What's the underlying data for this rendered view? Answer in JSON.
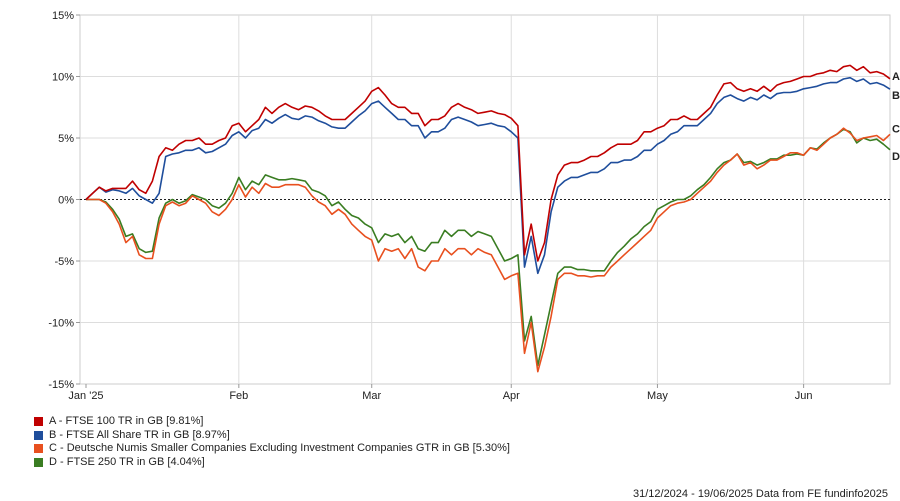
{
  "chart_data": {
    "type": "line",
    "yticks": [
      "15%",
      "10%",
      "5%",
      "0%",
      "-5%",
      "-10%",
      "-15%"
    ],
    "ylim": [
      -15,
      15
    ],
    "xlim": [
      0,
      121
    ],
    "xticks": [
      {
        "label": "Jan '25",
        "x": 0
      },
      {
        "label": "Feb",
        "x": 23
      },
      {
        "label": "Mar",
        "x": 43
      },
      {
        "label": "Apr",
        "x": 64
      },
      {
        "label": "May",
        "x": 86
      },
      {
        "label": "Jun",
        "x": 108
      }
    ],
    "grid": true,
    "legend_position": "bottom-left",
    "series": [
      {
        "letter": "A",
        "name": "A - FTSE 100 TR in GB [9.81%]",
        "color": "#c00000",
        "values": [
          0,
          0.5,
          1.0,
          0.7,
          0.9,
          0.9,
          0.9,
          1.5,
          0.8,
          0.5,
          1.5,
          3.5,
          4.2,
          4.0,
          4.5,
          4.8,
          4.8,
          5.0,
          4.5,
          4.5,
          4.8,
          5.0,
          6.0,
          6.2,
          5.5,
          6.0,
          6.5,
          7.5,
          7.0,
          7.5,
          7.8,
          7.5,
          7.3,
          7.6,
          7.5,
          7.2,
          6.8,
          6.5,
          6.5,
          6.5,
          7.0,
          7.5,
          8.0,
          8.8,
          9.1,
          8.5,
          7.8,
          7.5,
          7.5,
          7.0,
          7.0,
          6.0,
          6.5,
          6.5,
          6.8,
          7.5,
          7.8,
          7.5,
          7.3,
          7.0,
          7.1,
          7.2,
          7.0,
          6.9,
          6.6,
          6.0,
          -4.5,
          -2.0,
          -5.0,
          -3.5,
          0,
          2.0,
          2.8,
          3.0,
          3.0,
          3.2,
          3.5,
          3.5,
          3.8,
          4.2,
          4.5,
          4.5,
          4.5,
          4.8,
          5.5,
          5.5,
          5.8,
          6.0,
          6.5,
          6.5,
          6.8,
          6.5,
          6.5,
          7.0,
          7.5,
          8.5,
          9.4,
          9.5,
          9.0,
          8.8,
          9.0,
          8.8,
          9.2,
          8.8,
          9.3,
          9.5,
          9.6,
          9.8,
          10.0,
          10.0,
          10.2,
          10.3,
          10.5,
          10.4,
          10.8,
          10.9,
          10.5,
          10.8,
          10.3,
          10.4,
          10.2,
          9.81
        ]
      },
      {
        "letter": "B",
        "name": "B - FTSE All Share TR in GB [8.97%]",
        "color": "#1f4e9c",
        "values": [
          0,
          0.5,
          1.0,
          0.6,
          0.8,
          0.7,
          0.5,
          0.9,
          0.3,
          0,
          -0.3,
          0.5,
          3.5,
          3.7,
          3.8,
          4.0,
          4.0,
          4.2,
          3.8,
          3.9,
          4.2,
          4.5,
          5.2,
          5.5,
          5.0,
          5.6,
          5.8,
          6.5,
          6.2,
          6.6,
          6.9,
          6.6,
          6.5,
          6.8,
          6.7,
          6.4,
          6.2,
          5.9,
          5.8,
          5.8,
          6.3,
          6.8,
          7.2,
          7.8,
          8.0,
          7.5,
          7.0,
          6.5,
          6.5,
          6.0,
          6.0,
          5.0,
          5.5,
          5.5,
          5.8,
          6.5,
          6.7,
          6.5,
          6.3,
          6.0,
          6.1,
          6.2,
          6.0,
          5.9,
          5.5,
          5.0,
          -5.5,
          -3.0,
          -6.0,
          -4.5,
          -1.0,
          1.0,
          1.5,
          1.8,
          1.8,
          2.0,
          2.2,
          2.2,
          2.5,
          3.0,
          3.0,
          3.2,
          3.2,
          3.5,
          4.0,
          4.0,
          4.5,
          4.8,
          5.3,
          5.5,
          6.0,
          6.0,
          6.0,
          6.5,
          7.0,
          7.8,
          8.3,
          8.5,
          8.2,
          8.0,
          8.3,
          8.1,
          8.5,
          8.2,
          8.6,
          8.7,
          8.7,
          8.8,
          9.0,
          9.1,
          9.2,
          9.4,
          9.5,
          9.5,
          9.8,
          9.9,
          9.6,
          9.8,
          9.4,
          9.5,
          9.3,
          8.97
        ]
      },
      {
        "letter": "C",
        "name": "C - Deutsche Numis Smaller Companies Excluding Investment Companies GTR in GB [5.30%]",
        "color": "#e8501f",
        "values": [
          0,
          0,
          0,
          -0.3,
          -1.0,
          -2.0,
          -3.5,
          -3.0,
          -4.5,
          -4.8,
          -4.8,
          -2.0,
          -0.5,
          -0.2,
          -0.5,
          -0.3,
          0.3,
          0,
          -0.3,
          -1.0,
          -1.3,
          -0.8,
          0,
          1.2,
          0.2,
          1.0,
          0.5,
          1.3,
          1.0,
          1.0,
          1.2,
          1.2,
          1.2,
          1.0,
          0.3,
          -0.2,
          -0.5,
          -1.2,
          -0.8,
          -1.2,
          -2.0,
          -2.5,
          -3.0,
          -3.3,
          -5.0,
          -4.0,
          -4.2,
          -4.0,
          -4.8,
          -4.0,
          -5.5,
          -5.8,
          -5.0,
          -5.0,
          -4.0,
          -4.5,
          -4.0,
          -4.0,
          -4.5,
          -4.0,
          -4.3,
          -4.5,
          -5.5,
          -6.5,
          -6.2,
          -6.0,
          -12.5,
          -10.0,
          -14.0,
          -12.0,
          -9.5,
          -6.5,
          -6.0,
          -6.0,
          -6.2,
          -6.2,
          -6.3,
          -6.2,
          -6.2,
          -5.5,
          -5.0,
          -4.5,
          -4.0,
          -3.5,
          -3.0,
          -2.5,
          -1.5,
          -1.0,
          -0.5,
          -0.3,
          -0.2,
          0,
          0.5,
          1.0,
          1.5,
          2.2,
          2.8,
          3.2,
          3.7,
          2.8,
          3.0,
          2.5,
          2.8,
          3.2,
          3.2,
          3.5,
          3.8,
          3.8,
          3.6,
          4.2,
          4.0,
          4.5,
          5.0,
          5.3,
          5.8,
          5.4,
          4.8,
          5.0,
          5.1,
          5.2,
          4.8,
          5.3
        ]
      },
      {
        "letter": "D",
        "name": "D - FTSE 250 TR in GB [4.04%]",
        "color": "#3a7d22",
        "values": [
          0,
          0,
          0,
          -0.2,
          -0.8,
          -1.6,
          -3.0,
          -2.8,
          -4.0,
          -4.3,
          -4.2,
          -1.5,
          -0.3,
          0,
          -0.3,
          -0.1,
          0.4,
          0.2,
          0,
          -0.5,
          -0.7,
          -0.3,
          0.5,
          1.8,
          0.8,
          1.5,
          1.2,
          2.0,
          1.8,
          1.6,
          1.6,
          1.7,
          1.6,
          1.5,
          0.8,
          0.6,
          0.3,
          -0.5,
          -0.2,
          -0.8,
          -1.3,
          -1.5,
          -2.0,
          -2.3,
          -3.5,
          -2.8,
          -3.0,
          -2.8,
          -3.5,
          -3.0,
          -4.0,
          -4.2,
          -3.5,
          -3.5,
          -2.5,
          -3.0,
          -2.5,
          -2.5,
          -3.0,
          -2.6,
          -2.8,
          -3.0,
          -4.0,
          -5.0,
          -4.8,
          -4.5,
          -11.5,
          -9.5,
          -13.5,
          -11.0,
          -8.5,
          -6.0,
          -5.5,
          -5.5,
          -5.7,
          -5.7,
          -5.8,
          -5.8,
          -5.8,
          -5.0,
          -4.3,
          -3.8,
          -3.2,
          -2.8,
          -2.2,
          -1.8,
          -0.8,
          -0.5,
          -0.2,
          0,
          0,
          0.3,
          0.8,
          1.2,
          1.8,
          2.5,
          3.0,
          3.2,
          3.7,
          3.0,
          3.1,
          2.8,
          3.0,
          3.3,
          3.3,
          3.6,
          3.6,
          3.7,
          3.6,
          4.2,
          4.1,
          4.6,
          5.0,
          5.3,
          5.7,
          5.5,
          4.6,
          5.0,
          4.8,
          4.9,
          4.5,
          4.04
        ]
      }
    ]
  },
  "footer_text": "31/12/2024 - 19/06/2025 Data from FE fundinfo2025"
}
